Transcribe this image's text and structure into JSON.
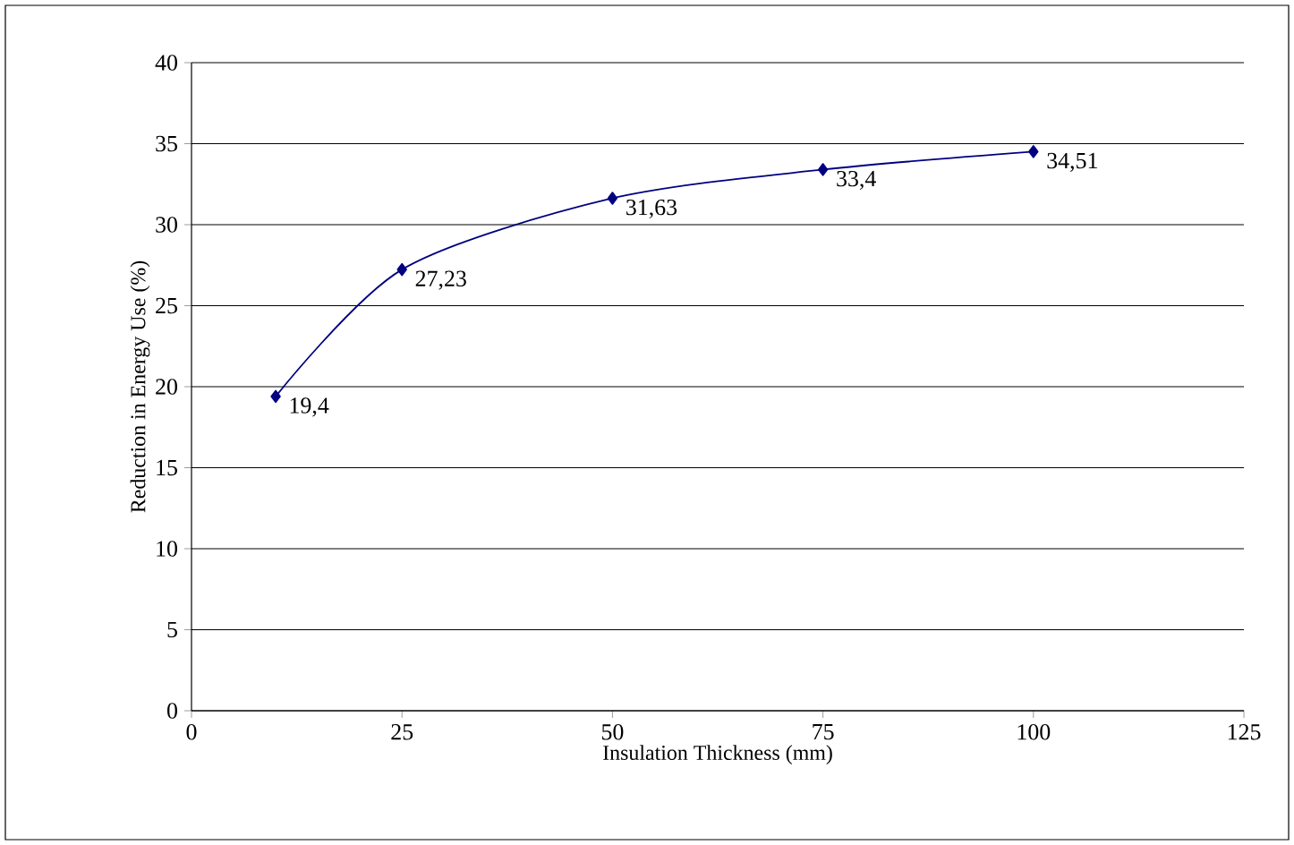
{
  "chart_data": {
    "type": "line",
    "xlabel": "Insulation Thickness (mm)",
    "ylabel": "Reduction in Energy Use (%)",
    "x": [
      10,
      25,
      50,
      75,
      100
    ],
    "series": [
      {
        "color": "#000080",
        "values": [
          19.4,
          27.23,
          31.63,
          33.4,
          34.51
        ],
        "value_labels": [
          "19,4",
          "27,23",
          "31,63",
          "33,4",
          "34,51"
        ]
      }
    ],
    "xlim": [
      0,
      125
    ],
    "ylim": [
      0,
      40
    ],
    "xticks": [
      0,
      25,
      50,
      75,
      100,
      125
    ],
    "yticks": [
      0,
      5,
      10,
      15,
      20,
      25,
      30,
      35,
      40
    ],
    "grid": "y",
    "marker": "diamond",
    "line_style": "solid"
  }
}
